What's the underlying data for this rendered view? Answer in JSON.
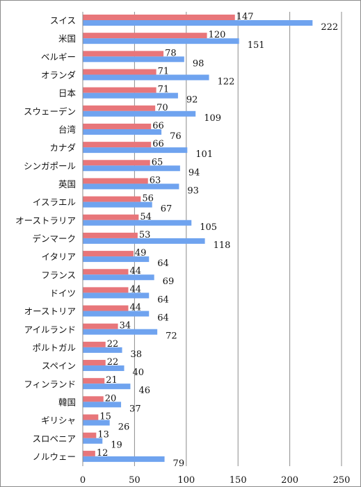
{
  "chart_data": {
    "type": "bar",
    "orientation": "horizontal",
    "categories": [
      "スイス",
      "米国",
      "ベルギー",
      "オランダ",
      "日本",
      "スウェーデン",
      "台湾",
      "カナダ",
      "シンガポール",
      "英国",
      "イスラエル",
      "オーストラリア",
      "デンマーク",
      "イタリア",
      "フランス",
      "ドイツ",
      "オーストリア",
      "アイルランド",
      "ポルトガル",
      "スペイン",
      "フィンランド",
      "韓国",
      "ギリシャ",
      "スロベニア",
      "ノルウェー"
    ],
    "series": [
      {
        "color": "#e8767a",
        "values": [
          147,
          120,
          78,
          71,
          71,
          70,
          66,
          66,
          65,
          63,
          56,
          54,
          53,
          49,
          44,
          44,
          44,
          34,
          22,
          22,
          21,
          20,
          15,
          13,
          12
        ]
      },
      {
        "color": "#6fa3ef",
        "values": [
          222,
          151,
          98,
          122,
          92,
          109,
          76,
          101,
          94,
          93,
          67,
          105,
          118,
          64,
          69,
          64,
          64,
          72,
          38,
          40,
          46,
          37,
          26,
          19,
          79
        ]
      }
    ],
    "xlim": [
      0,
      250
    ],
    "xticks": [
      "0",
      "50",
      "100",
      "150",
      "200",
      "250"
    ],
    "grid": "vertical",
    "legend": "none"
  }
}
